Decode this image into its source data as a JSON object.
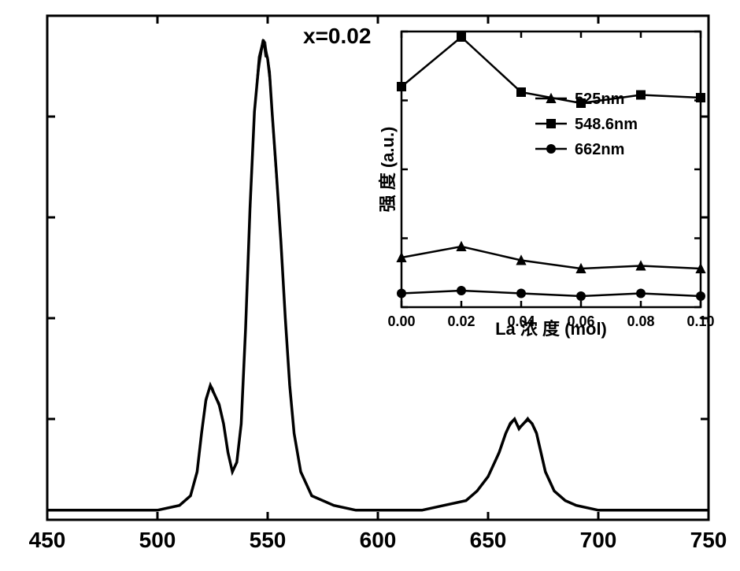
{
  "main_chart": {
    "type": "line",
    "annotation": "x=0.02",
    "annotation_fontsize": 28,
    "xlim": [
      450,
      750
    ],
    "xtick_step": 50,
    "xtick_labels": [
      "450",
      "500",
      "550",
      "600",
      "650",
      "700",
      "750"
    ],
    "xtick_fontsize": 28,
    "axis_color": "#000000",
    "axis_width": 3,
    "tick_length": 10,
    "line_color": "#000000",
    "line_width": 3.5,
    "background_color": "#ffffff",
    "spectrum_x": [
      450,
      460,
      470,
      480,
      490,
      500,
      510,
      515,
      518,
      520,
      522,
      524,
      525,
      526,
      528,
      530,
      532,
      534,
      536,
      538,
      540,
      542,
      544,
      546,
      548,
      549,
      550,
      551,
      552,
      554,
      556,
      558,
      560,
      562,
      565,
      570,
      580,
      590,
      600,
      610,
      620,
      630,
      640,
      645,
      650,
      655,
      658,
      660,
      662,
      664,
      666,
      668,
      670,
      672,
      674,
      676,
      680,
      685,
      690,
      700,
      710,
      720,
      730,
      740,
      750
    ],
    "spectrum_y": [
      2,
      2,
      2,
      2,
      2,
      2,
      3,
      5,
      10,
      18,
      25,
      28,
      27,
      26,
      24,
      20,
      14,
      10,
      12,
      20,
      40,
      65,
      85,
      95,
      100,
      98,
      96,
      92,
      85,
      72,
      58,
      42,
      28,
      18,
      10,
      5,
      3,
      2,
      2,
      2,
      2,
      3,
      4,
      6,
      9,
      14,
      18,
      20,
      21,
      19,
      20,
      21,
      20,
      18,
      14,
      10,
      6,
      4,
      3,
      2,
      2,
      2,
      2,
      2,
      2
    ]
  },
  "inset_chart": {
    "type": "line",
    "xlabel": "La 浓   度 (mol)",
    "ylabel": "强 度 (a.u.)",
    "xlabel_fontsize": 22,
    "ylabel_fontsize": 22,
    "xlim": [
      0.0,
      0.1
    ],
    "xtick_values": [
      0.0,
      0.02,
      0.04,
      0.06,
      0.08,
      0.1
    ],
    "xtick_labels": [
      "0.00",
      "0.02",
      "0.04",
      "0.06",
      "0.08",
      "0.10"
    ],
    "xtick_fontsize": 18,
    "axis_color": "#000000",
    "axis_width": 2.5,
    "tick_length": 8,
    "line_color": "#000000",
    "line_width": 2.5,
    "marker_size": 6,
    "background_color": "#ffffff",
    "legend": {
      "items": [
        {
          "marker": "triangle",
          "label": "525nm"
        },
        {
          "marker": "square",
          "label": "548.6nm"
        },
        {
          "marker": "circle",
          "label": "662nm"
        }
      ],
      "fontsize": 20
    },
    "series": [
      {
        "name": "525nm",
        "marker": "triangle",
        "x": [
          0.0,
          0.02,
          0.04,
          0.06,
          0.08,
          0.1
        ],
        "y": [
          18,
          22,
          17,
          14,
          15,
          14
        ]
      },
      {
        "name": "548.6nm",
        "marker": "square",
        "x": [
          0.0,
          0.02,
          0.04,
          0.06,
          0.08,
          0.1
        ],
        "y": [
          80,
          98,
          78,
          74,
          77,
          76
        ]
      },
      {
        "name": "662nm",
        "marker": "circle",
        "x": [
          0.0,
          0.02,
          0.04,
          0.06,
          0.08,
          0.1
        ],
        "y": [
          5,
          6,
          5,
          4,
          5,
          4
        ]
      }
    ]
  }
}
